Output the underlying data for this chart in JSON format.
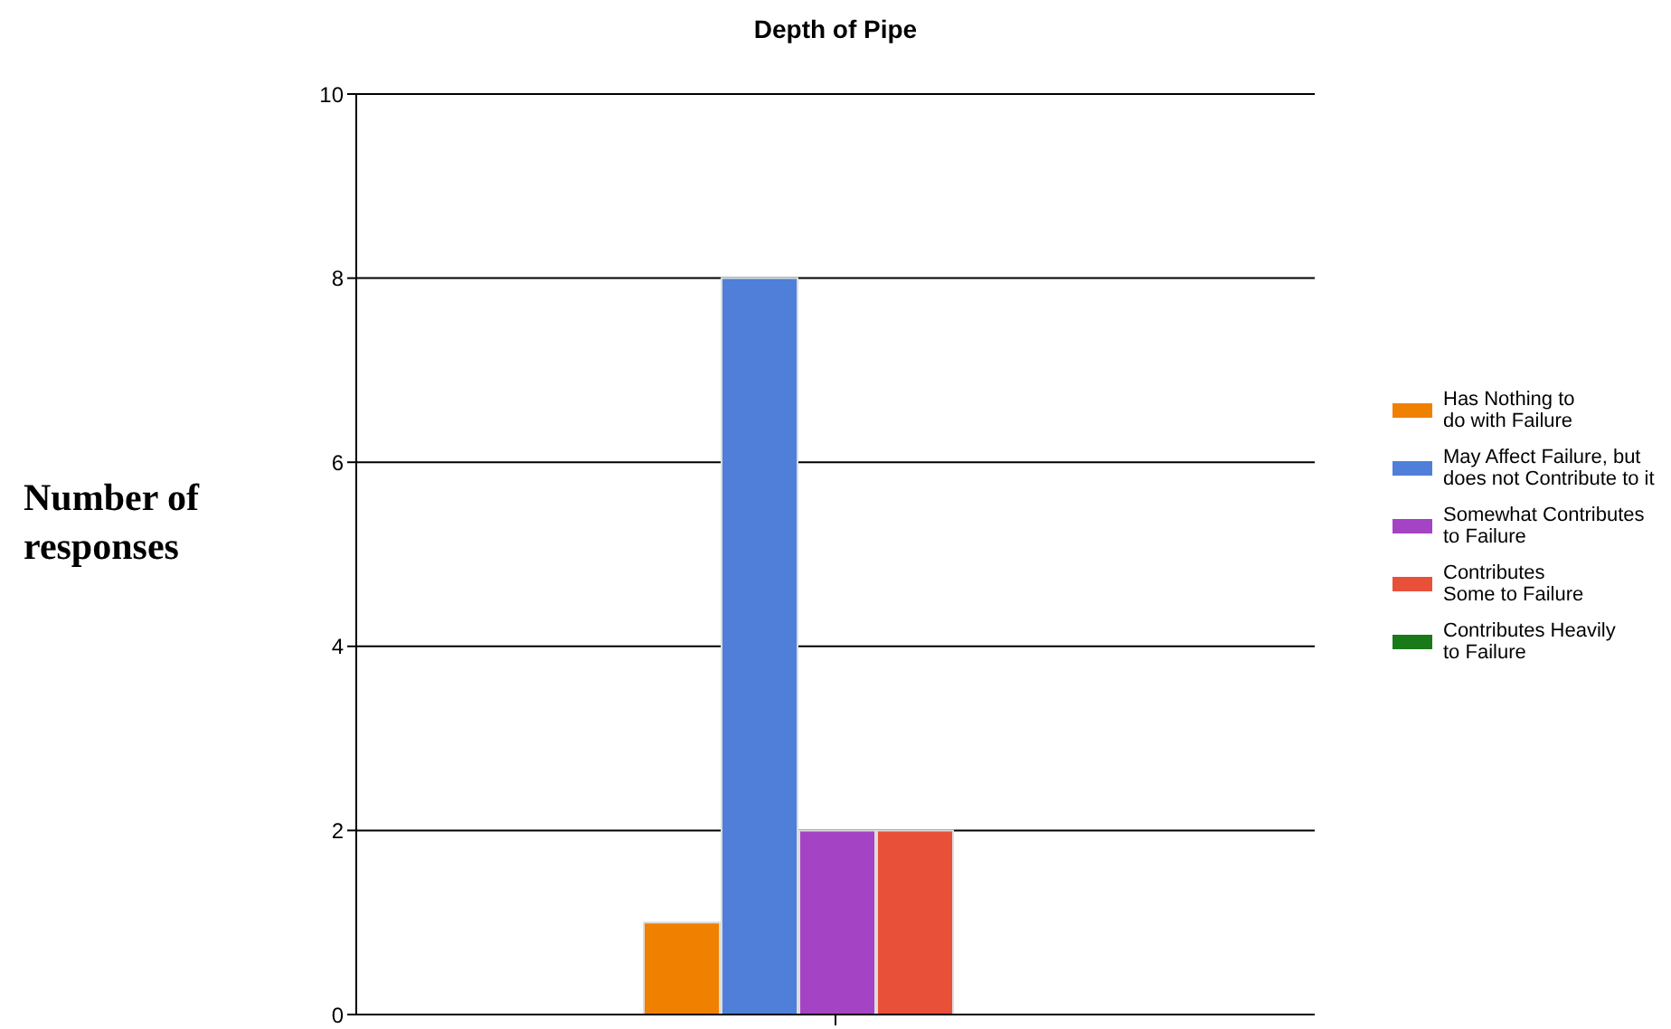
{
  "chart_data": {
    "type": "bar",
    "title": "Depth of Pipe",
    "ylabel": "Number of responses",
    "categories": [
      null
    ],
    "series": [
      {
        "name": "Has Nothing to\ndo with Failure",
        "color": "#f08000",
        "values": [
          1
        ]
      },
      {
        "name": "May Affect Failure, but\ndoes not Contribute to it",
        "color": "#4f7fd8",
        "values": [
          8
        ]
      },
      {
        "name": "Somewhat Contributes\nto Failure",
        "color": "#a444c4",
        "values": [
          2
        ]
      },
      {
        "name": "Contributes\nSome to Failure",
        "color": "#e8503a",
        "values": [
          2
        ]
      },
      {
        "name": "Contributes Heavily\nto Failure",
        "color": "#1a7a1a",
        "values": [
          0
        ]
      }
    ],
    "ylim": [
      0,
      10
    ],
    "yticks": [
      0,
      2,
      4,
      6,
      8,
      10
    ],
    "grid": "y",
    "legend": "right"
  }
}
